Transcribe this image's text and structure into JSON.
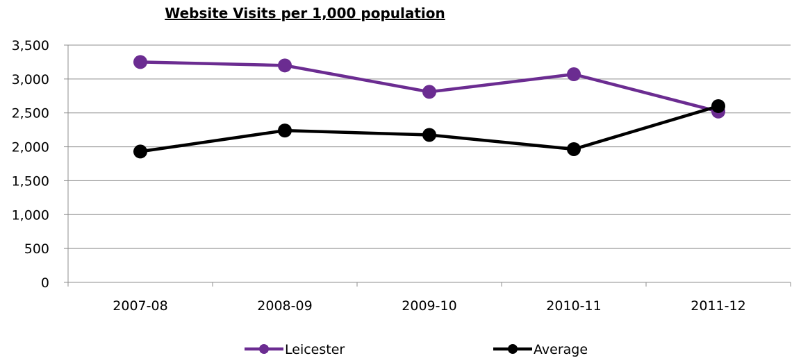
{
  "chart_data": {
    "type": "line",
    "title": "Website Visits per 1,000 population",
    "xlabel": "",
    "ylabel": "",
    "categories": [
      "2007-08",
      "2008-09",
      "2009-10",
      "2010-11",
      "2011-12"
    ],
    "ylim": [
      0,
      3500
    ],
    "yticks": [
      0,
      500,
      1000,
      1500,
      2000,
      2500,
      3000,
      3500
    ],
    "ytick_labels": [
      "0",
      "500",
      "1,000",
      "1,500",
      "2,000",
      "2,500",
      "3,000",
      "3,500"
    ],
    "grid": true,
    "legend_position": "bottom",
    "series": [
      {
        "name": "Leicester",
        "color": "#6B2C91",
        "values": [
          3250,
          3200,
          2810,
          3070,
          2520
        ]
      },
      {
        "name": "Average",
        "color": "#000000",
        "values": [
          1930,
          2240,
          2175,
          1965,
          2600
        ]
      }
    ]
  }
}
